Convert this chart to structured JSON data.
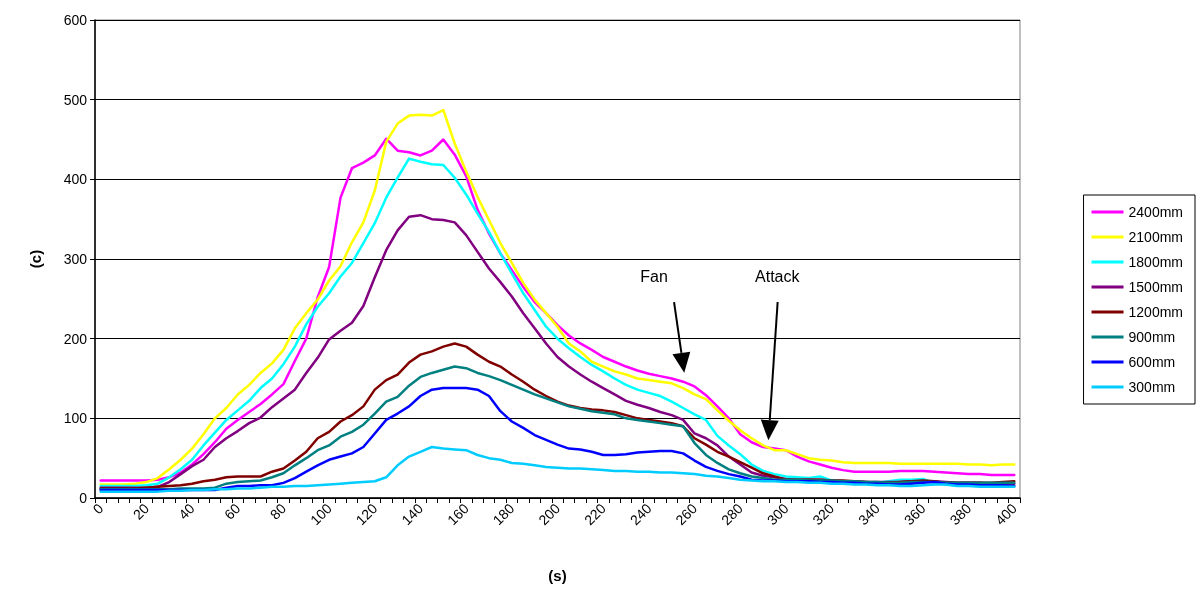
{
  "chart_data": {
    "type": "line",
    "xlabel": "(s)",
    "ylabel": "(c)",
    "categories": [
      "0",
      null,
      null,
      null,
      "20",
      null,
      null,
      null,
      "40",
      null,
      null,
      null,
      "60",
      null,
      null,
      null,
      "80",
      null,
      null,
      null,
      "100",
      null,
      null,
      null,
      "120",
      null,
      null,
      null,
      "140",
      null,
      null,
      null,
      "160",
      null,
      null,
      null,
      "180",
      null,
      null,
      null,
      "200",
      null,
      null,
      null,
      "220",
      null,
      null,
      null,
      "240",
      null,
      null,
      null,
      "260",
      null,
      null,
      null,
      "280",
      null,
      null,
      null,
      "300",
      null,
      null,
      null,
      "320",
      null,
      null,
      null,
      "340",
      null,
      null,
      null,
      "360",
      null,
      null,
      null,
      "380",
      null,
      null,
      null,
      "400"
    ],
    "series": [
      {
        "name": "2400mm",
        "color": "#ff00ff",
        "values": [
          22,
          22,
          22,
          22,
          22,
          23,
          26,
          32,
          42,
          55,
          70,
          87,
          98,
          108,
          118,
          130,
          143,
          172,
          200,
          252,
          290,
          377,
          414,
          421,
          430,
          451,
          436,
          434,
          430,
          436,
          450,
          431,
          404,
          362,
          332,
          307,
          286,
          265,
          246,
          232,
          217,
          204,
          194,
          186,
          177,
          171,
          165,
          160,
          156,
          153,
          150,
          146,
          140,
          129,
          115,
          100,
          80,
          70,
          64,
          62,
          60,
          52,
          46,
          42,
          38,
          35,
          33,
          33,
          33,
          33,
          34,
          34,
          34,
          33,
          32,
          31,
          30,
          30,
          29,
          29,
          29
        ]
      },
      {
        "name": "2100mm",
        "color": "#ffff00",
        "values": [
          17,
          17,
          17,
          18,
          20,
          25,
          36,
          48,
          62,
          80,
          100,
          113,
          130,
          142,
          157,
          169,
          186,
          213,
          232,
          249,
          273,
          291,
          321,
          346,
          386,
          447,
          470,
          480,
          481,
          480,
          487,
          445,
          410,
          378,
          349,
          320,
          295,
          270,
          249,
          232,
          215,
          194,
          184,
          171,
          165,
          159,
          155,
          150,
          148,
          146,
          144,
          138,
          130,
          124,
          110,
          97,
          85,
          75,
          66,
          60,
          60,
          55,
          50,
          48,
          47,
          45,
          44,
          44,
          44,
          44,
          43,
          43,
          43,
          43,
          43,
          43,
          42,
          42,
          41,
          42,
          42
        ]
      },
      {
        "name": "1800mm",
        "color": "#00ffff",
        "values": [
          15,
          15,
          15,
          15,
          16,
          18,
          26,
          36,
          48,
          66,
          82,
          98,
          110,
          122,
          138,
          150,
          168,
          190,
          218,
          240,
          257,
          278,
          295,
          320,
          345,
          377,
          402,
          426,
          422,
          419,
          418,
          402,
          381,
          357,
          334,
          307,
          282,
          257,
          236,
          215,
          200,
          188,
          177,
          167,
          159,
          150,
          142,
          136,
          132,
          128,
          121,
          113,
          105,
          98,
          78,
          66,
          55,
          42,
          34,
          30,
          27,
          26,
          25,
          27,
          22,
          20,
          19,
          19,
          19,
          21,
          23,
          23,
          24,
          19,
          17,
          16,
          16,
          16,
          16,
          null,
          null
        ]
      },
      {
        "name": "1500mm",
        "color": "#800080",
        "values": [
          13,
          13,
          13,
          13,
          13,
          14,
          20,
          30,
          40,
          48,
          64,
          75,
          84,
          94,
          101,
          114,
          125,
          136,
          157,
          176,
          199,
          210,
          220,
          241,
          277,
          311,
          336,
          353,
          355,
          350,
          349,
          346,
          330,
          309,
          288,
          271,
          253,
          232,
          213,
          194,
          177,
          165,
          155,
          146,
          138,
          130,
          122,
          117,
          113,
          108,
          104,
          98,
          81,
          75,
          66,
          52,
          42,
          32,
          28,
          26,
          24,
          23,
          23,
          23,
          22,
          21,
          21,
          20,
          20,
          20,
          20,
          21,
          21,
          21,
          20,
          19,
          19,
          19,
          18,
          18,
          18
        ]
      },
      {
        "name": "1200mm",
        "color": "#800000",
        "values": [
          12,
          12,
          12,
          12,
          13,
          14,
          15,
          16,
          18,
          21,
          23,
          26,
          27,
          27,
          27,
          33,
          37,
          47,
          58,
          75,
          83,
          96,
          104,
          115,
          136,
          148,
          155,
          170,
          180,
          184,
          190,
          194,
          190,
          180,
          171,
          165,
          155,
          146,
          136,
          128,
          121,
          116,
          113,
          111,
          110,
          108,
          104,
          100,
          98,
          96,
          94,
          90,
          75,
          67,
          58,
          52,
          45,
          38,
          31,
          27,
          23,
          23,
          23,
          23,
          22,
          22,
          21,
          20,
          19,
          19,
          20,
          21,
          22,
          21,
          19,
          19,
          19,
          19,
          19,
          20,
          21
        ]
      },
      {
        "name": "900mm",
        "color": "#008080",
        "values": [
          11,
          11,
          11,
          11,
          11,
          11,
          11,
          12,
          12,
          12,
          13,
          18,
          20,
          21,
          22,
          26,
          31,
          41,
          50,
          60,
          66,
          77,
          83,
          92,
          106,
          121,
          127,
          141,
          152,
          157,
          161,
          165,
          163,
          157,
          153,
          148,
          142,
          136,
          130,
          125,
          120,
          115,
          112,
          109,
          107,
          105,
          100,
          98,
          96,
          94,
          92,
          90,
          69,
          54,
          44,
          36,
          31,
          27,
          25,
          23,
          23,
          23,
          22,
          22,
          22,
          21,
          21,
          20,
          20,
          19,
          19,
          20,
          20,
          20,
          19,
          19,
          19,
          19,
          19,
          19,
          19
        ]
      },
      {
        "name": "600mm",
        "color": "#0000ff",
        "values": [
          10,
          10,
          10,
          10,
          10,
          10,
          10,
          10,
          10,
          10,
          10,
          13,
          15,
          15,
          16,
          16,
          19,
          25,
          33,
          41,
          48,
          52,
          56,
          64,
          81,
          98,
          106,
          115,
          128,
          136,
          138,
          138,
          138,
          136,
          128,
          109,
          96,
          88,
          79,
          73,
          67,
          62,
          61,
          58,
          54,
          54,
          55,
          57,
          58,
          59,
          59,
          56,
          47,
          39,
          34,
          30,
          27,
          23,
          22,
          22,
          21,
          21,
          21,
          20,
          20,
          19,
          19,
          18,
          18,
          17,
          17,
          18,
          19,
          20,
          18,
          17,
          17,
          16,
          16,
          16,
          15
        ]
      },
      {
        "name": "300mm",
        "color": "#00ccff",
        "values": [
          8,
          8,
          8,
          8,
          8,
          8,
          9,
          9,
          10,
          10,
          11,
          11,
          12,
          12,
          13,
          14,
          14,
          15,
          15,
          16,
          17,
          18,
          19,
          20,
          21,
          26,
          41,
          52,
          58,
          64,
          62,
          61,
          60,
          54,
          50,
          48,
          44,
          43,
          41,
          39,
          38,
          37,
          37,
          36,
          35,
          34,
          34,
          33,
          33,
          32,
          32,
          31,
          30,
          28,
          27,
          25,
          23,
          22,
          21,
          21,
          20,
          20,
          19,
          19,
          18,
          18,
          17,
          17,
          16,
          16,
          15,
          15,
          16,
          17,
          17,
          15,
          15,
          14,
          14,
          14,
          14
        ]
      }
    ],
    "ylim": [
      0,
      600
    ],
    "yticks": [
      0,
      100,
      200,
      300,
      400,
      500,
      600
    ],
    "grid": "y",
    "legend": "right",
    "marker": "none",
    "line_style": "solid",
    "annotations": [
      "Fan",
      "Attack"
    ]
  }
}
